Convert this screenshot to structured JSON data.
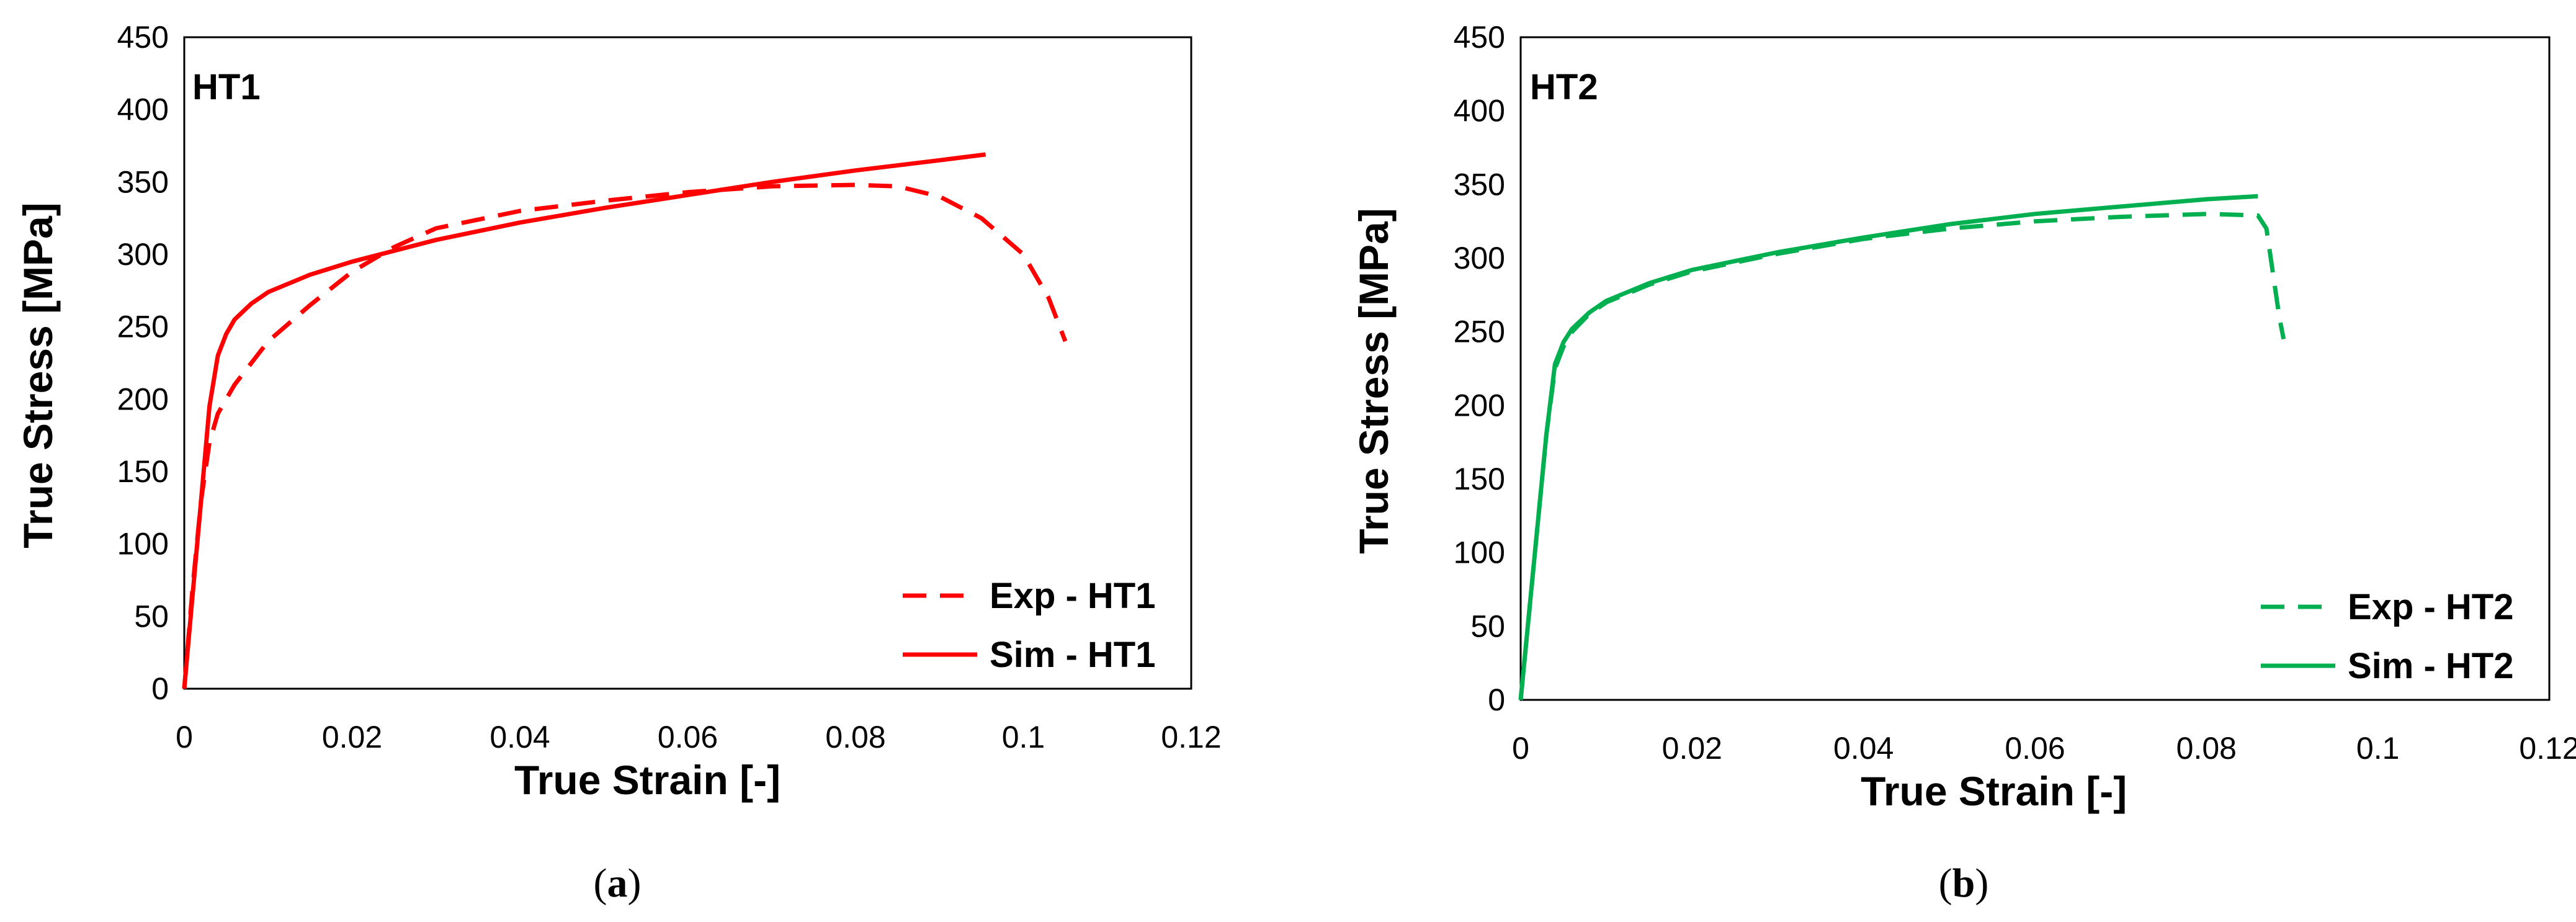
{
  "chart_data": [
    {
      "type": "line",
      "panel": "a",
      "caption_letter": "a",
      "annotation": "HT1",
      "xlabel": "True Strain [-]",
      "ylabel": "True Stress [MPa]",
      "xlim": [
        0,
        0.12
      ],
      "ylim": [
        0,
        450
      ],
      "xticks": [
        0,
        0.02,
        0.04,
        0.06,
        0.08,
        0.1,
        0.12
      ],
      "xtick_labels": [
        "0",
        "0.02",
        "0.04",
        "0.06",
        "0.08",
        "0.1",
        "0.12"
      ],
      "yticks": [
        0,
        50,
        100,
        150,
        200,
        250,
        300,
        350,
        400,
        450
      ],
      "ytick_labels": [
        "0",
        "50",
        "100",
        "150",
        "200",
        "250",
        "300",
        "350",
        "400",
        "450"
      ],
      "grid": false,
      "legend_position": "bottom-right",
      "series": [
        {
          "name": "Exp - HT1",
          "color": "#ff0000",
          "style": "dashed",
          "x": [
            0,
            0.001,
            0.002,
            0.003,
            0.004,
            0.006,
            0.008,
            0.01,
            0.015,
            0.02,
            0.025,
            0.03,
            0.04,
            0.05,
            0.06,
            0.07,
            0.08,
            0.085,
            0.09,
            0.095,
            0.1,
            0.103,
            0.105
          ],
          "y": [
            0,
            70,
            130,
            170,
            190,
            210,
            225,
            240,
            265,
            288,
            305,
            318,
            330,
            337,
            343,
            347,
            348,
            347,
            340,
            325,
            300,
            270,
            240
          ]
        },
        {
          "name": "Sim - HT1",
          "color": "#ff0000",
          "style": "solid",
          "x": [
            0,
            0.001,
            0.002,
            0.003,
            0.004,
            0.005,
            0.006,
            0.008,
            0.01,
            0.015,
            0.02,
            0.03,
            0.04,
            0.05,
            0.06,
            0.07,
            0.08,
            0.09,
            0.0955
          ],
          "y": [
            0,
            65,
            130,
            195,
            230,
            245,
            255,
            266,
            274,
            286,
            295,
            310,
            322,
            332,
            341,
            350,
            358,
            365,
            369
          ]
        }
      ]
    },
    {
      "type": "line",
      "panel": "b",
      "caption_letter": "b",
      "annotation": "HT2",
      "xlabel": "True Strain [-]",
      "ylabel": "True Stress [MPa]",
      "xlim": [
        0,
        0.12
      ],
      "ylim": [
        0,
        450
      ],
      "xticks": [
        0,
        0.02,
        0.04,
        0.06,
        0.08,
        0.1,
        0.12
      ],
      "xtick_labels": [
        "0",
        "0.02",
        "0.04",
        "0.06",
        "0.08",
        "0.1",
        "0.12"
      ],
      "yticks": [
        0,
        50,
        100,
        150,
        200,
        250,
        300,
        350,
        400,
        450
      ],
      "ytick_labels": [
        "0",
        "50",
        "100",
        "150",
        "200",
        "250",
        "300",
        "350",
        "400",
        "450"
      ],
      "grid": false,
      "legend_position": "bottom-right",
      "series": [
        {
          "name": "Exp - HT2",
          "color": "#00b050",
          "style": "dashed",
          "x": [
            0,
            0.001,
            0.002,
            0.003,
            0.004,
            0.005,
            0.006,
            0.008,
            0.01,
            0.015,
            0.02,
            0.03,
            0.04,
            0.05,
            0.06,
            0.07,
            0.08,
            0.086,
            0.087,
            0.0875,
            0.088,
            0.0885,
            0.089
          ],
          "y": [
            0,
            60,
            120,
            180,
            225,
            240,
            250,
            262,
            270,
            282,
            291,
            303,
            313,
            320,
            325,
            328,
            330,
            329,
            320,
            300,
            280,
            260,
            245
          ]
        },
        {
          "name": "Sim - HT2",
          "color": "#00b050",
          "style": "solid",
          "x": [
            0,
            0.001,
            0.002,
            0.003,
            0.004,
            0.005,
            0.006,
            0.008,
            0.01,
            0.015,
            0.02,
            0.03,
            0.04,
            0.05,
            0.06,
            0.07,
            0.08,
            0.086
          ],
          "y": [
            0,
            60,
            120,
            180,
            228,
            243,
            252,
            263,
            271,
            283,
            292,
            304,
            314,
            323,
            330,
            335,
            340,
            342
          ]
        }
      ]
    }
  ]
}
